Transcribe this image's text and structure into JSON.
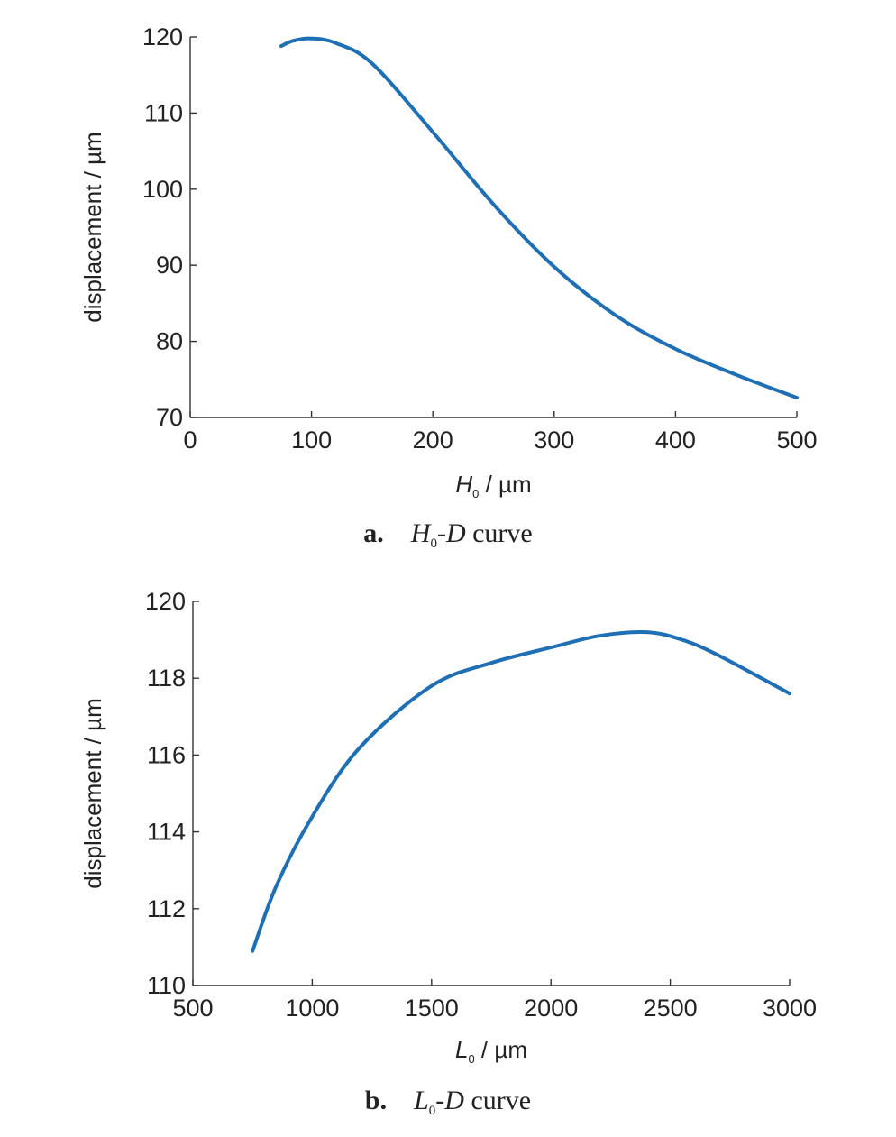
{
  "chart_data": [
    {
      "type": "line",
      "title": "",
      "xlabel": {
        "symbol": "H",
        "subscript": "0",
        "unit": " / µm"
      },
      "ylabel": "displacement / µm",
      "xlim": [
        0,
        500
      ],
      "ylim": [
        70,
        120
      ],
      "xticks": [
        0,
        100,
        200,
        300,
        400,
        500
      ],
      "yticks": [
        70,
        80,
        90,
        100,
        110,
        120
      ],
      "grid": false,
      "series": [
        {
          "color": "#1f6fb5",
          "x": [
            75,
            85,
            100,
            120,
            150,
            200,
            250,
            300,
            350,
            400,
            450,
            500
          ],
          "y": [
            118.8,
            119.5,
            119.8,
            119.2,
            116.5,
            107.5,
            98,
            89.8,
            83.5,
            79,
            75.6,
            72.6
          ]
        }
      ],
      "caption": {
        "letter": "a.",
        "symbol": "H",
        "subscript": "0",
        "text": "-D curve",
        "dsym": "D",
        "rest": " curve"
      }
    },
    {
      "type": "line",
      "title": "",
      "xlabel": {
        "symbol": "L",
        "subscript": "0",
        "unit": " / µm"
      },
      "ylabel": "displacement / µm",
      "xlim": [
        500,
        3000
      ],
      "ylim": [
        110,
        120
      ],
      "xticks": [
        500,
        1000,
        1500,
        2000,
        2500,
        3000
      ],
      "yticks": [
        110,
        112,
        114,
        116,
        118,
        120
      ],
      "grid": false,
      "series": [
        {
          "color": "#1f6fb5",
          "x": [
            750,
            850,
            1000,
            1200,
            1500,
            1750,
            2000,
            2200,
            2400,
            2550,
            2700,
            3000
          ],
          "y": [
            110.9,
            112.6,
            114.4,
            116.2,
            117.8,
            118.4,
            118.8,
            119.1,
            119.2,
            119.0,
            118.6,
            117.6
          ]
        }
      ],
      "caption": {
        "letter": "b.",
        "symbol": "L",
        "subscript": "0",
        "dsym": "D",
        "rest": " curve"
      }
    }
  ]
}
